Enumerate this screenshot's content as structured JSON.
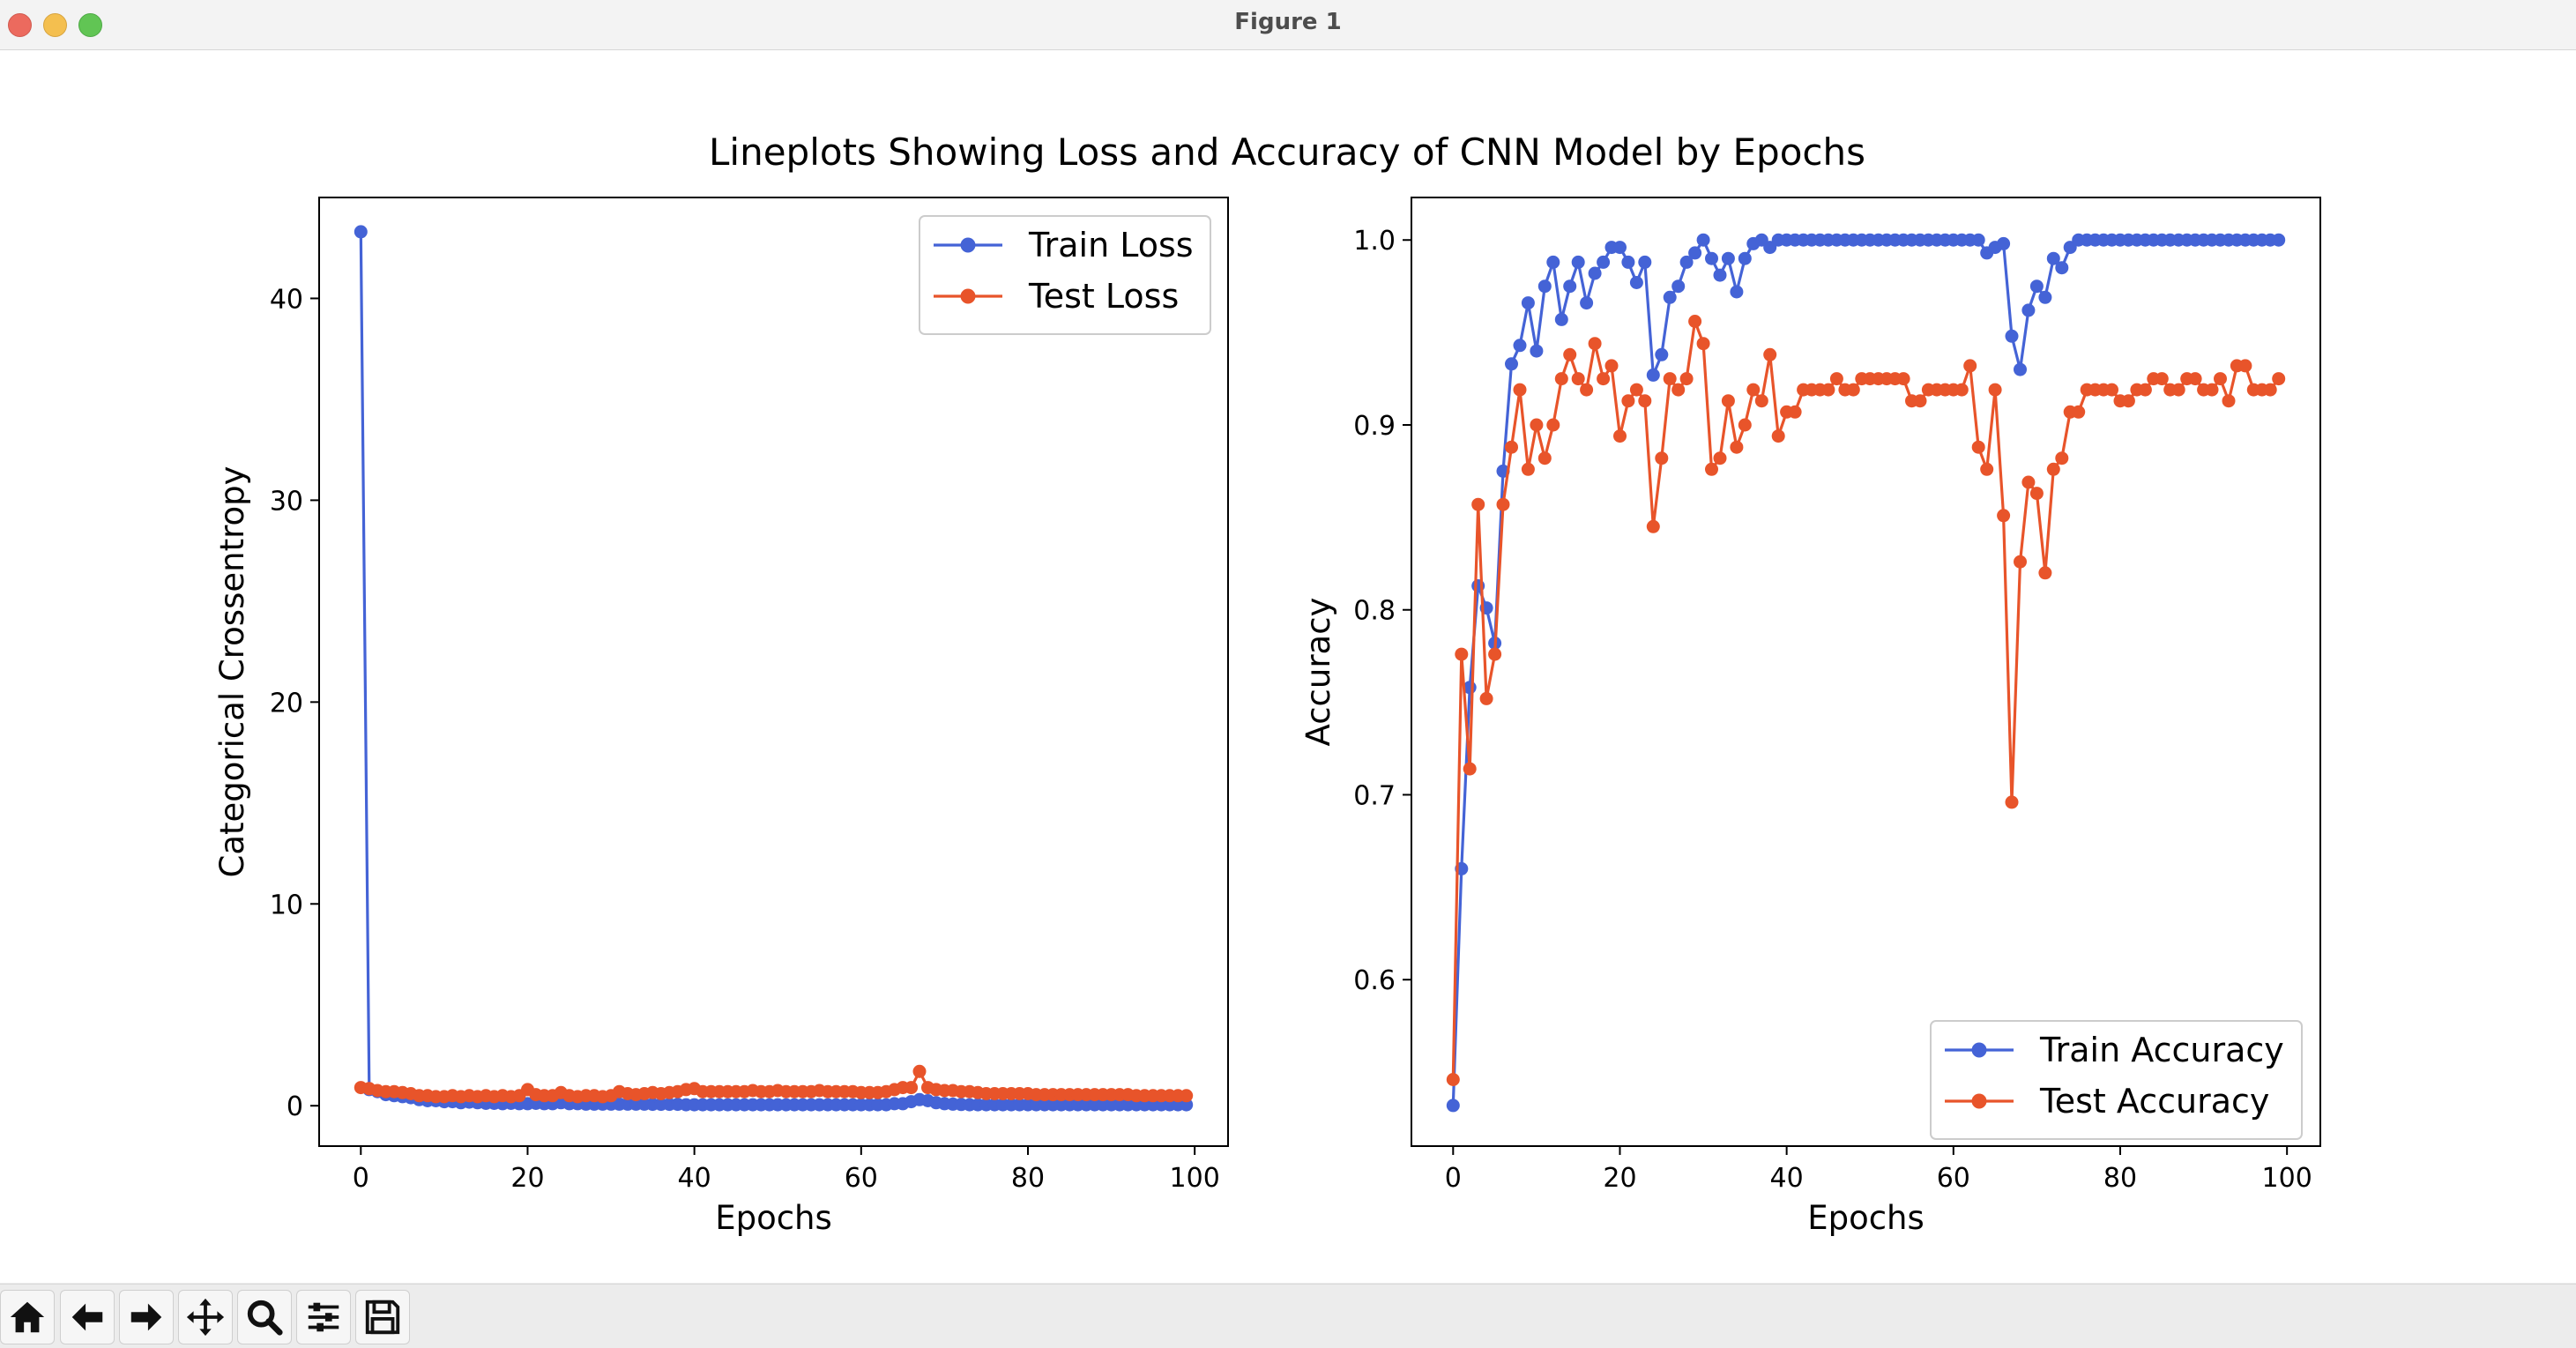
{
  "window": {
    "title": "Figure 1"
  },
  "figure": {
    "suptitle": "Lineplots Showing Loss and Accuracy of CNN Model by Epochs"
  },
  "colors": {
    "train": "#4463d6",
    "test": "#e8542a"
  },
  "toolbar": {
    "tools": [
      {
        "name": "home-icon"
      },
      {
        "name": "back-arrow-icon"
      },
      {
        "name": "forward-arrow-icon"
      },
      {
        "name": "pan-icon"
      },
      {
        "name": "zoom-icon"
      },
      {
        "name": "configure-subplots-icon"
      },
      {
        "name": "save-icon"
      }
    ]
  },
  "chart_data": [
    {
      "type": "line",
      "xlabel": "Epochs",
      "ylabel": "Categorical Crossentropy",
      "xlim": [
        -5,
        104
      ],
      "ylim": [
        -2,
        45
      ],
      "xticks": [
        0,
        20,
        40,
        60,
        80,
        100
      ],
      "yticks": [
        0,
        10,
        20,
        30,
        40
      ],
      "legend_placement": "upper-right",
      "grid": false,
      "series": [
        {
          "name": "Train Loss",
          "color": "#4463d6",
          "values": [
            43.3,
            0.8,
            0.7,
            0.55,
            0.5,
            0.45,
            0.4,
            0.3,
            0.25,
            0.25,
            0.2,
            0.2,
            0.15,
            0.18,
            0.15,
            0.12,
            0.12,
            0.1,
            0.12,
            0.1,
            0.1,
            0.12,
            0.1,
            0.1,
            0.15,
            0.1,
            0.1,
            0.08,
            0.08,
            0.08,
            0.08,
            0.08,
            0.08,
            0.08,
            0.08,
            0.07,
            0.07,
            0.07,
            0.07,
            0.05,
            0.05,
            0.05,
            0.05,
            0.05,
            0.05,
            0.05,
            0.05,
            0.05,
            0.05,
            0.05,
            0.05,
            0.05,
            0.05,
            0.05,
            0.05,
            0.05,
            0.05,
            0.05,
            0.05,
            0.05,
            0.05,
            0.05,
            0.05,
            0.05,
            0.1,
            0.1,
            0.2,
            0.3,
            0.25,
            0.15,
            0.1,
            0.08,
            0.06,
            0.05,
            0.05,
            0.05,
            0.05,
            0.05,
            0.05,
            0.05,
            0.05,
            0.05,
            0.05,
            0.05,
            0.05,
            0.05,
            0.05,
            0.05,
            0.05,
            0.05,
            0.05,
            0.05,
            0.05,
            0.05,
            0.05,
            0.05,
            0.05,
            0.05,
            0.05,
            0.05
          ]
        },
        {
          "name": "Test Loss",
          "color": "#e8542a",
          "values": [
            0.9,
            0.85,
            0.75,
            0.7,
            0.7,
            0.65,
            0.6,
            0.5,
            0.5,
            0.45,
            0.45,
            0.5,
            0.45,
            0.5,
            0.45,
            0.5,
            0.45,
            0.5,
            0.45,
            0.5,
            0.8,
            0.55,
            0.5,
            0.5,
            0.65,
            0.5,
            0.45,
            0.5,
            0.5,
            0.45,
            0.5,
            0.7,
            0.6,
            0.55,
            0.6,
            0.65,
            0.6,
            0.65,
            0.7,
            0.8,
            0.85,
            0.7,
            0.7,
            0.7,
            0.7,
            0.7,
            0.7,
            0.75,
            0.7,
            0.7,
            0.75,
            0.7,
            0.7,
            0.7,
            0.7,
            0.75,
            0.7,
            0.7,
            0.7,
            0.7,
            0.65,
            0.65,
            0.65,
            0.7,
            0.8,
            0.9,
            0.9,
            1.7,
            0.9,
            0.8,
            0.75,
            0.75,
            0.7,
            0.7,
            0.65,
            0.6,
            0.6,
            0.6,
            0.6,
            0.6,
            0.6,
            0.55,
            0.55,
            0.55,
            0.55,
            0.55,
            0.55,
            0.55,
            0.55,
            0.55,
            0.55,
            0.55,
            0.55,
            0.5,
            0.5,
            0.5,
            0.5,
            0.5,
            0.5,
            0.5
          ]
        }
      ]
    },
    {
      "type": "line",
      "xlabel": "Epochs",
      "ylabel": "Accuracy",
      "xlim": [
        -5,
        104
      ],
      "ylim": [
        0.51,
        1.023
      ],
      "xticks": [
        0,
        20,
        40,
        60,
        80,
        100
      ],
      "yticks": [
        0.6,
        0.7,
        0.8,
        0.9,
        1.0
      ],
      "ytick_labels": [
        "0.6",
        "0.7",
        "0.8",
        "0.9",
        "1.0"
      ],
      "legend_placement": "lower-right",
      "grid": false,
      "series": [
        {
          "name": "Train Accuracy",
          "color": "#4463d6",
          "values": [
            0.532,
            0.66,
            0.758,
            0.813,
            0.801,
            0.782,
            0.875,
            0.933,
            0.943,
            0.966,
            0.94,
            0.975,
            0.988,
            0.957,
            0.975,
            0.988,
            0.966,
            0.982,
            0.988,
            0.996,
            0.996,
            0.988,
            0.977,
            0.988,
            0.927,
            0.938,
            0.969,
            0.975,
            0.988,
            0.993,
            1.0,
            0.99,
            0.981,
            0.99,
            0.972,
            0.99,
            0.998,
            1.0,
            0.996,
            1.0,
            1.0,
            1.0,
            1.0,
            1.0,
            1.0,
            1.0,
            1.0,
            1.0,
            1.0,
            1.0,
            1.0,
            1.0,
            1.0,
            1.0,
            1.0,
            1.0,
            1.0,
            1.0,
            1.0,
            1.0,
            1.0,
            1.0,
            1.0,
            1.0,
            0.993,
            0.996,
            0.998,
            0.948,
            0.93,
            0.962,
            0.975,
            0.969,
            0.99,
            0.985,
            0.996,
            1.0,
            1.0,
            1.0,
            1.0,
            1.0,
            1.0,
            1.0,
            1.0,
            1.0,
            1.0,
            1.0,
            1.0,
            1.0,
            1.0,
            1.0,
            1.0,
            1.0,
            1.0,
            1.0,
            1.0,
            1.0,
            1.0,
            1.0,
            1.0,
            1.0
          ]
        },
        {
          "name": "Test Accuracy",
          "color": "#e8542a",
          "values": [
            0.546,
            0.776,
            0.714,
            0.857,
            0.752,
            0.776,
            0.857,
            0.888,
            0.919,
            0.876,
            0.9,
            0.882,
            0.9,
            0.925,
            0.938,
            0.925,
            0.919,
            0.944,
            0.925,
            0.932,
            0.894,
            0.913,
            0.919,
            0.913,
            0.845,
            0.882,
            0.925,
            0.919,
            0.925,
            0.956,
            0.944,
            0.876,
            0.882,
            0.913,
            0.888,
            0.9,
            0.919,
            0.913,
            0.938,
            0.894,
            0.907,
            0.907,
            0.919,
            0.919,
            0.919,
            0.919,
            0.925,
            0.919,
            0.919,
            0.925,
            0.925,
            0.925,
            0.925,
            0.925,
            0.925,
            0.913,
            0.913,
            0.919,
            0.919,
            0.919,
            0.919,
            0.919,
            0.932,
            0.888,
            0.876,
            0.919,
            0.851,
            0.696,
            0.826,
            0.869,
            0.863,
            0.82,
            0.876,
            0.882,
            0.907,
            0.907,
            0.919,
            0.919,
            0.919,
            0.919,
            0.913,
            0.913,
            0.919,
            0.919,
            0.925,
            0.925,
            0.919,
            0.919,
            0.925,
            0.925,
            0.919,
            0.919,
            0.925,
            0.913,
            0.932,
            0.932,
            0.919,
            0.919,
            0.919,
            0.925
          ]
        }
      ]
    }
  ]
}
